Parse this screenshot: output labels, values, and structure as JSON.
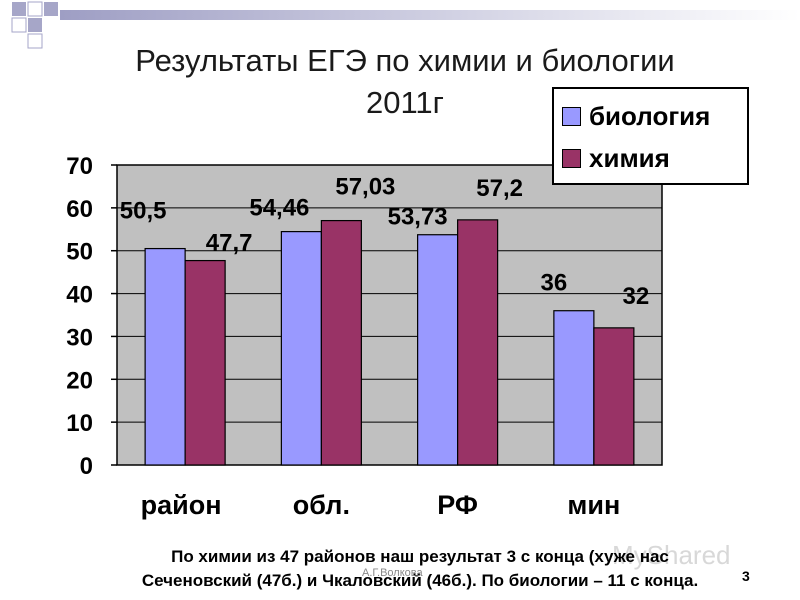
{
  "slide": {
    "title_line1": "Результаты ЕГЭ по химии и биологии",
    "title_line2": "2011г",
    "footer_line1": "По химии из 47 районов наш результат 3 с конца (хуже нас",
    "footer_line2": "Сеченовский (47б.) и Чкаловский (46б.). По биологии – 11 с конца.",
    "author": "А.Г.Волкова",
    "page_number": "3",
    "watermark": "MyShared"
  },
  "colors": {
    "biology": "#9999ff",
    "chemistry": "#993366",
    "plot_bg": "#c0c0c0",
    "deco": "#a6a6c8"
  },
  "chart_data": {
    "type": "bar",
    "categories": [
      "район",
      "обл.",
      "РФ",
      "мин"
    ],
    "series": [
      {
        "name": "биология",
        "values": [
          50.5,
          54.46,
          53.73,
          36
        ],
        "labels": [
          "50,5",
          "54,46",
          "53,73",
          "36"
        ]
      },
      {
        "name": "химия",
        "values": [
          47.7,
          57.03,
          57.2,
          32
        ],
        "labels": [
          "47,7",
          "57,03",
          "57,2",
          "32"
        ]
      }
    ],
    "ylim": [
      0,
      70
    ],
    "yticks": [
      0,
      10,
      20,
      30,
      40,
      50,
      60,
      70
    ],
    "grid": true,
    "legend_position": "top-right"
  }
}
